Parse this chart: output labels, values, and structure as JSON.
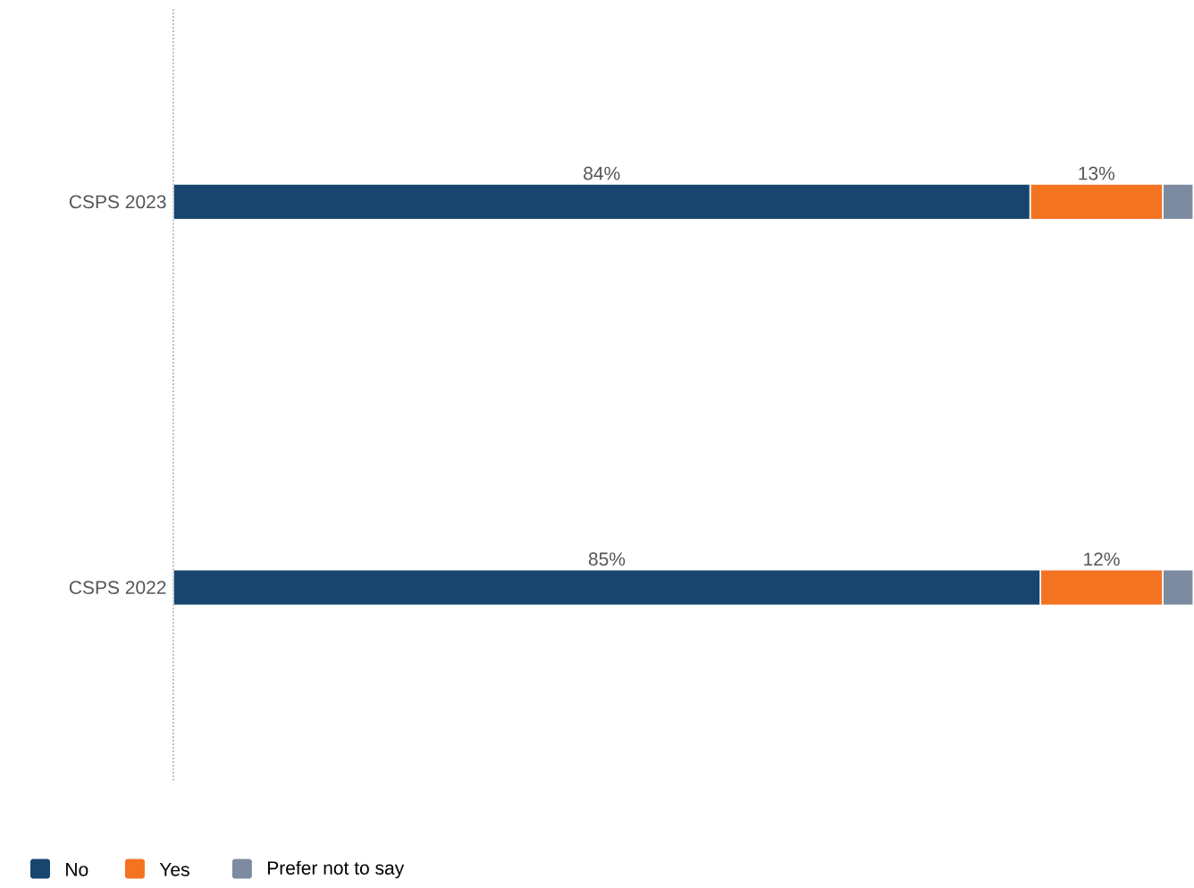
{
  "chart_data": {
    "type": "bar",
    "orientation": "horizontal",
    "stacked": true,
    "categories": [
      "CSPS 2023",
      "CSPS 2022"
    ],
    "xlim": [
      0,
      100
    ],
    "legend": "bottom left",
    "series": [
      {
        "name": "No",
        "color": "#17456e",
        "values": [
          84,
          85
        ],
        "value_labels": [
          "84%",
          "85%"
        ]
      },
      {
        "name": "Yes",
        "color": "#f47321",
        "values": [
          13,
          12
        ],
        "value_labels": [
          "13%",
          "12%"
        ]
      },
      {
        "name": "Prefer not to say",
        "color": "#7d8ba0",
        "values": [
          3,
          3
        ],
        "value_labels": [
          null,
          null
        ]
      }
    ]
  }
}
